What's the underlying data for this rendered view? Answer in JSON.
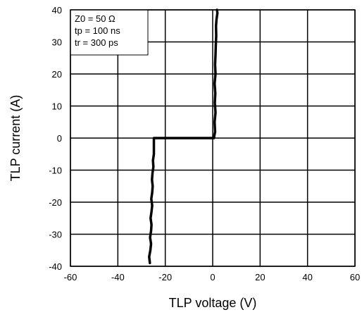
{
  "chart_data": {
    "type": "line",
    "title": "",
    "xlabel": "TLP voltage   (V)",
    "ylabel": "TLP current   (A)",
    "xlim": [
      -60,
      60
    ],
    "ylim": [
      -40,
      40
    ],
    "x_ticks": [
      -60,
      -40,
      -20,
      0,
      20,
      40,
      60
    ],
    "y_ticks": [
      -40,
      -30,
      -20,
      -10,
      0,
      10,
      20,
      30,
      40
    ],
    "grid": true,
    "legend": "none",
    "colors": {
      "line": "#000000",
      "grid": "#000000",
      "background": "#ffffff"
    },
    "annotation": {
      "position": "top-left",
      "lines": [
        "Z0 = 50 Ω",
        "tp = 100 ns",
        "tr = 300 ps"
      ]
    },
    "series": [
      {
        "x": [
          -26.5,
          -26.8,
          -26.3,
          -26.0,
          -26.4,
          -26.0,
          -25.8,
          -26.2,
          -25.8,
          -25.5,
          -25.9,
          -25.5,
          -25.3,
          -25.6,
          -25.4,
          -25.0,
          -25.2,
          -24.8,
          -24.8,
          0.5,
          1.0,
          0.8,
          1.2,
          0.9,
          1.1,
          0.8,
          1.2,
          1.0,
          1.2,
          1.3,
          1.5,
          1.4,
          1.6,
          2.0,
          1.8
        ],
        "y": [
          -39,
          -37,
          -35,
          -33,
          -31,
          -29,
          -27,
          -25,
          -23,
          -21,
          -19,
          -17,
          -15,
          -13,
          -11,
          -9,
          -7,
          -5,
          0,
          0,
          2,
          5,
          8,
          11,
          14,
          17,
          20,
          23,
          26,
          29,
          32,
          35,
          37,
          39,
          40
        ]
      }
    ]
  }
}
